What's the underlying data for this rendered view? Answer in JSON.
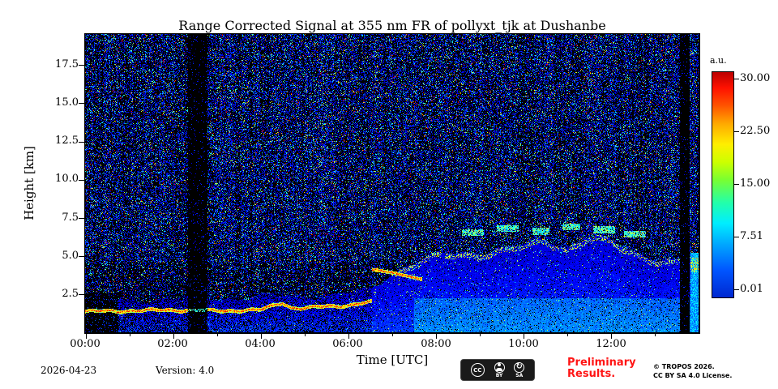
{
  "title": "Range Corrected Signal at 355 nm FR of pollyxt_tjk at Dushanbe",
  "axes": {
    "xlabel": "Time [UTC]",
    "ylabel": "Height [km]"
  },
  "x_ticks": [
    "00:00",
    "02:00",
    "04:00",
    "06:00",
    "08:00",
    "10:00",
    "12:00"
  ],
  "y_ticks": [
    "17.5",
    "15.0",
    "12.5",
    "10.0",
    "7.5",
    "5.0",
    "2.5"
  ],
  "colorbar": {
    "label": "a.u.",
    "ticks": [
      "30.00",
      "22.50",
      "15.00",
      "7.51",
      "0.01"
    ]
  },
  "footer": {
    "date": "2026-04-23",
    "version": "Version: 4.0",
    "preliminary_line1": "Preliminary",
    "preliminary_line2": "Results.",
    "preliminary_color": "#ff1515",
    "copyright_line1": "© TROPOS 2026.",
    "copyright_line2": "CC BY SA 4.0 License.",
    "cc_badge": {
      "icons": [
        "cc-icon",
        "cc-by-person-icon",
        "cc-sa-arrow-icon"
      ],
      "by_label": "BY",
      "sa_label": "SA"
    }
  },
  "chart_data": {
    "type": "heatmap",
    "title": "Range Corrected Signal at 355 nm FR of pollyxt_tjk at Dushanbe",
    "xlabel": "Time [UTC]",
    "ylabel": "Height [km]",
    "x_range_hours": [
      0,
      14
    ],
    "x_tick_hours": [
      0,
      2,
      4,
      6,
      8,
      10,
      12
    ],
    "x_tick_labels": [
      "00:00",
      "02:00",
      "04:00",
      "06:00",
      "08:00",
      "10:00",
      "12:00"
    ],
    "y_range_km": [
      0,
      19.5
    ],
    "y_tick_values_km": [
      2.5,
      5.0,
      7.5,
      10.0,
      12.5,
      15.0,
      17.5
    ],
    "colormap": "jet",
    "colorbar": {
      "label": "a.u.",
      "vmin": 0.01,
      "vmax": 30.0,
      "tick_values": [
        30.0,
        22.5,
        15.0,
        7.51,
        0.01
      ]
    },
    "features": {
      "description": "black background with dense blue/green speckle noise in vertical streaks; bright yellow-green boundary-layer line near 1.4 km until ~06:30; lifted bright layer descending 4.1 to 3.5 km between 06:30 and 07:40; broad blue aerosol layer up to ~5-6 km after 08:00 with cyan cloud streaks near 6.5-7 km; dark calibration gaps near 02:30 and 13:40",
      "boundary_layer_top_km": {
        "hours": [
          0,
          1,
          2,
          3,
          4,
          4.5,
          4.7,
          5,
          5.5,
          6,
          6.5
        ],
        "km": [
          1.35,
          1.4,
          1.45,
          1.4,
          1.45,
          1.95,
          1.6,
          1.55,
          1.7,
          1.75,
          1.95
        ]
      },
      "lifted_layer_km": {
        "hours": [
          6.55,
          7.0,
          7.7
        ],
        "km": [
          4.1,
          3.9,
          3.45
        ]
      },
      "aerosol_top_km": {
        "hours": [
          0,
          2,
          4,
          6,
          6.5,
          7,
          7.5,
          8,
          9,
          10,
          10.5,
          11,
          11.5,
          12,
          12.5,
          13,
          13.5,
          14
        ],
        "km": [
          2.1,
          2.2,
          2.3,
          2.5,
          2.7,
          3.9,
          4.6,
          5.0,
          5.3,
          5.6,
          6.1,
          5.6,
          6.3,
          5.9,
          5.3,
          4.9,
          4.6,
          5.0
        ]
      },
      "cloud_streaks": [
        {
          "hours": [
            8.6,
            9.1
          ],
          "km": 6.5
        },
        {
          "hours": [
            9.4,
            9.9
          ],
          "km": 6.8
        },
        {
          "hours": [
            10.2,
            10.6
          ],
          "km": 6.6
        },
        {
          "hours": [
            10.9,
            11.3
          ],
          "km": 6.9
        },
        {
          "hours": [
            11.6,
            12.1
          ],
          "km": 6.7
        },
        {
          "hours": [
            12.3,
            12.8
          ],
          "km": 6.4
        }
      ],
      "dark_columns_hours": [
        [
          2.35,
          2.8
        ],
        [
          13.58,
          13.8
        ]
      ],
      "dark_patch_start": {
        "hours": [
          0,
          0.75
        ],
        "km": [
          0,
          2.6
        ]
      },
      "right_edge_plume": {
        "hours": [
          13.82,
          14.0
        ],
        "top_km": 5.2,
        "green_band_km": [
          3.9,
          4.9
        ]
      }
    }
  }
}
